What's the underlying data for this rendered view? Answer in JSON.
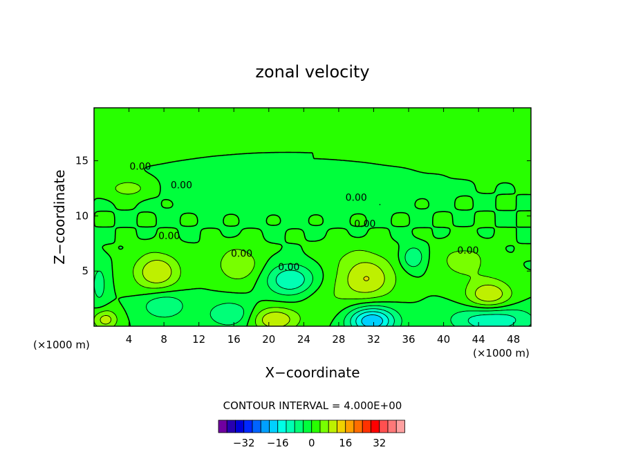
{
  "chart_data": {
    "type": "heatmap",
    "title": "zonal velocity",
    "xlabel": "X−coordinate",
    "ylabel": "Z−coordinate",
    "x_unit_label": "(×1000 m)",
    "z_unit_label": "(×1000 m)",
    "xlim": [
      0,
      50
    ],
    "ylim": [
      0,
      19.8
    ],
    "x_ticks": [
      "4",
      "8",
      "12",
      "16",
      "20",
      "24",
      "28",
      "32",
      "36",
      "40",
      "44",
      "48"
    ],
    "y_ticks": [
      "5",
      "10",
      "15"
    ],
    "x_tick_values": [
      4,
      8,
      12,
      16,
      20,
      24,
      28,
      32,
      36,
      40,
      44,
      48
    ],
    "y_tick_values": [
      5,
      10,
      15
    ],
    "contour_interval_text": "CONTOUR INTERVAL = 4.000E+00",
    "contour_interval": 4,
    "contour_labels": [
      {
        "text": "0.00",
        "x": 5.3,
        "z": 14.5
      },
      {
        "text": "0.00",
        "x": 10.0,
        "z": 12.8
      },
      {
        "text": "0.00",
        "x": 30.0,
        "z": 11.7
      },
      {
        "text": "0.00",
        "x": 31.0,
        "z": 9.3
      },
      {
        "text": "0.00",
        "x": 8.6,
        "z": 8.2
      },
      {
        "text": "0.00",
        "x": 16.9,
        "z": 6.6
      },
      {
        "text": "0.00",
        "x": 22.3,
        "z": 5.4
      },
      {
        "text": "0.00",
        "x": 42.8,
        "z": 6.9
      }
    ],
    "features": [
      {
        "x": 7.2,
        "z": 4.9,
        "rx": 2.6,
        "rz": 1.7,
        "v": 12
      },
      {
        "x": 16.5,
        "z": 5.6,
        "rx": 2.4,
        "rz": 1.6,
        "v": 8
      },
      {
        "x": 31.2,
        "z": 4.3,
        "rx": 3.2,
        "rz": 2.0,
        "v": 12
      },
      {
        "x": 45.2,
        "z": 2.8,
        "rx": 2.6,
        "rz": 1.4,
        "v": 12
      },
      {
        "x": 42.3,
        "z": 5.9,
        "rx": 3.0,
        "rz": 1.6,
        "v": 6
      },
      {
        "x": 20.7,
        "z": 0.6,
        "rx": 2.6,
        "rz": 1.1,
        "v": 12
      },
      {
        "x": 1.3,
        "z": 0.6,
        "rx": 1.4,
        "rz": 0.9,
        "v": 10
      },
      {
        "x": 3.9,
        "z": 12.5,
        "rx": 2.4,
        "rz": 0.9,
        "v": 6
      },
      {
        "x": 31.8,
        "z": 0.5,
        "rx": 2.7,
        "rz": 1.3,
        "v": -20
      },
      {
        "x": 45.5,
        "z": 0.6,
        "rx": 4.5,
        "rz": 1.3,
        "v": -12
      },
      {
        "x": 22.5,
        "z": 4.2,
        "rx": 2.7,
        "rz": 1.4,
        "v": -12
      },
      {
        "x": 8.0,
        "z": 1.9,
        "rx": 2.6,
        "rz": 1.3,
        "v": -8
      },
      {
        "x": 15.5,
        "z": 1.1,
        "rx": 2.6,
        "rz": 1.2,
        "v": -8
      },
      {
        "x": 36.5,
        "z": 6.2,
        "rx": 1.3,
        "rz": 1.1,
        "v": -8
      },
      {
        "x": 0.6,
        "z": 3.8,
        "rx": 0.9,
        "rz": 1.9,
        "v": -6
      },
      {
        "x": 26.5,
        "z": 2.2,
        "rx": 3.0,
        "rz": 1.8,
        "v": 3
      },
      {
        "x": 29.0,
        "z": 6.5,
        "rx": 4.0,
        "rz": 1.2,
        "v": 2
      }
    ],
    "colorbar": {
      "tick_labels": [
        "−32",
        "−16",
        "0",
        "16",
        "32"
      ],
      "tick_values": [
        -32,
        -16,
        0,
        16,
        32
      ],
      "colors": [
        "#7000a0",
        "#2800b0",
        "#0000d8",
        "#0028ff",
        "#0064ff",
        "#00a0ff",
        "#00d0ff",
        "#00ffe6",
        "#00ffb4",
        "#00ff78",
        "#00ff3c",
        "#28ff00",
        "#78ff00",
        "#bef000",
        "#f0d200",
        "#ffa000",
        "#ff6e00",
        "#ff3200",
        "#ff0000",
        "#ff5050",
        "#ff7878",
        "#ffa0a0"
      ]
    }
  }
}
